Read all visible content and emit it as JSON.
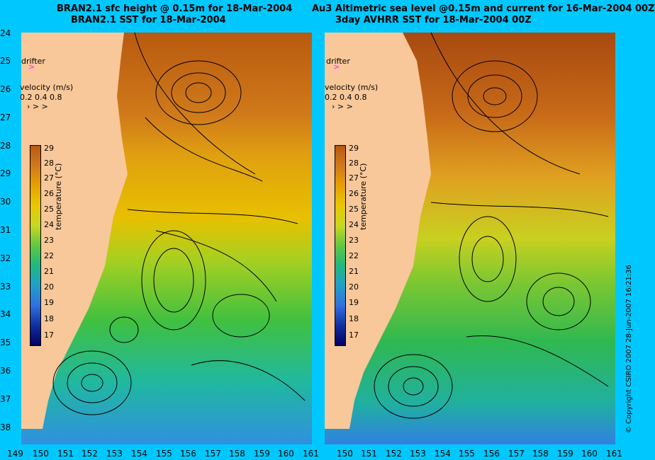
{
  "titles": {
    "left_line1": "BRAN2.1 sfc height @ 0.15m for 18-Mar-2004",
    "left_line2": "BRAN2.1 SST for 18-Mar-2004",
    "right_line1": "Au3 Altimetric sea level  @0.15m and current for 16-Mar-2004 00Z",
    "right_line2": "3day AVHRR SST for 18-Mar-2004 00Z"
  },
  "axes": {
    "lat_labels": [
      "24",
      "25",
      "26",
      "27",
      "28",
      "29",
      "30",
      "31",
      "32",
      "33",
      "34",
      "35",
      "36",
      "37",
      "38"
    ],
    "lon_labels_left": [
      "149",
      "150",
      "151",
      "152",
      "153",
      "154",
      "155",
      "156",
      "157",
      "158",
      "159",
      "160",
      "161"
    ],
    "lon_labels_right": [
      "150",
      "151",
      "152",
      "153",
      "154",
      "155",
      "156",
      "157",
      "158",
      "159",
      "160",
      "161"
    ]
  },
  "legend": {
    "drifter_label": "drifter",
    "velocity_label": "velocity (m/s)",
    "velocity_values": "0.2 0.4 0.8",
    "colorbar_title": "temperature (°C)",
    "colorbar_ticks": [
      "29",
      "28",
      "27",
      "26",
      "25",
      "24",
      "23",
      "22",
      "21",
      "20",
      "19",
      "18",
      "17"
    ]
  },
  "colors": {
    "background": "#00c8ff",
    "land": "#f8c89a",
    "drifter": "#ff40ff"
  },
  "copyright": "© Copyright CSIRO 2007     28-Jun-2007 16:21:36"
}
